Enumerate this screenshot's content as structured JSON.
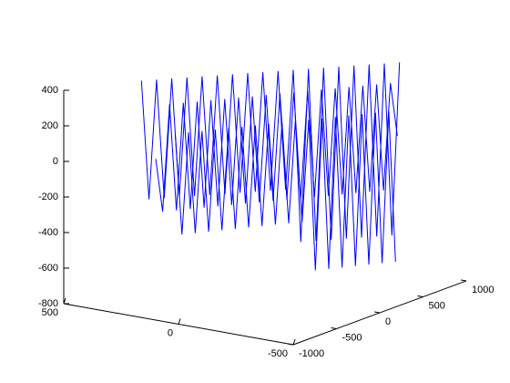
{
  "chart_data": {
    "type": "line3d",
    "color": "#0000ff",
    "xlim": [
      -500,
      500
    ],
    "xticks": [
      -500,
      0,
      500
    ],
    "ylim": [
      -1000,
      1000
    ],
    "yticks": [
      -1000,
      -500,
      0,
      500,
      1000
    ],
    "zlim": [
      -800,
      400
    ],
    "zticks": [
      -800,
      -600,
      -400,
      -200,
      0,
      200,
      400
    ],
    "series": [
      {
        "x": [
          250,
          235,
          220,
          205,
          190,
          175,
          160,
          145,
          130,
          115,
          100,
          85,
          70,
          55,
          40,
          25,
          10,
          -5,
          -20,
          -35,
          -50,
          -65,
          -80,
          -95,
          -110,
          -125,
          -140,
          -155,
          -170,
          -185,
          -200,
          -215,
          -230,
          -245,
          -260,
          -275
        ],
        "y": [
          -600,
          -560,
          -520,
          -480,
          -440,
          -400,
          -360,
          -320,
          -280,
          -240,
          -200,
          -160,
          -120,
          -80,
          -40,
          0,
          40,
          80,
          120,
          160,
          200,
          240,
          280,
          320,
          360,
          400,
          440,
          480,
          520,
          560,
          600,
          640,
          680,
          720,
          760,
          800
        ],
        "z": [
          0,
          -300,
          300,
          -300,
          300,
          -300,
          300,
          -300,
          300,
          -300,
          300,
          -300,
          300,
          -300,
          300,
          -300,
          300,
          -300,
          300,
          -300,
          300,
          -300,
          300,
          -300,
          300,
          -300,
          300,
          -300,
          300,
          -300,
          300,
          -300,
          300,
          -300,
          300,
          0
        ]
      },
      {
        "x": [
          320,
          302,
          284,
          266,
          248,
          230,
          212,
          194,
          176,
          158,
          140,
          122,
          104,
          86,
          68,
          50,
          32,
          14,
          -4,
          -22,
          -40,
          -58,
          -76,
          -94,
          -112,
          -130,
          -148,
          -166,
          -184,
          -202,
          -220,
          -238,
          -256,
          -274,
          -292
        ],
        "y": [
          -580,
          -540,
          -500,
          -460,
          -420,
          -380,
          -340,
          -300,
          -260,
          -220,
          -180,
          -140,
          -100,
          -60,
          -20,
          20,
          60,
          100,
          140,
          180,
          220,
          260,
          300,
          340,
          380,
          420,
          460,
          500,
          540,
          580,
          620,
          660,
          700,
          740,
          780
        ],
        "z": [
          420,
          -250,
          420,
          -250,
          420,
          -250,
          420,
          -250,
          420,
          -250,
          420,
          -250,
          420,
          -250,
          420,
          -250,
          420,
          -250,
          420,
          -250,
          420,
          -550,
          420,
          -550,
          420,
          -550,
          420,
          -550,
          420,
          -550,
          420,
          -550,
          420,
          -550,
          420
        ]
      },
      {
        "x": [
          180,
          166,
          152,
          138,
          124,
          110,
          96,
          82,
          68,
          54,
          40,
          26,
          12,
          -2,
          -16,
          -30,
          -44,
          -58,
          -72,
          -86,
          -100,
          -114,
          -128,
          -142,
          -156,
          -170,
          -184,
          -198,
          -212,
          -226,
          -240,
          -254,
          -268,
          -282
        ],
        "y": [
          -560,
          -520,
          -480,
          -440,
          -400,
          -360,
          -320,
          -280,
          -240,
          -200,
          -160,
          -120,
          -80,
          -40,
          0,
          40,
          80,
          120,
          160,
          200,
          240,
          280,
          320,
          360,
          400,
          440,
          480,
          520,
          560,
          600,
          640,
          680,
          720,
          760
        ],
        "z": [
          150,
          -420,
          150,
          -420,
          150,
          -420,
          150,
          -420,
          150,
          -420,
          150,
          -420,
          150,
          -420,
          150,
          -420,
          150,
          -420,
          150,
          -420,
          150,
          -700,
          150,
          -700,
          150,
          -700,
          150,
          -700,
          150,
          -700,
          150,
          -700,
          150,
          -700
        ]
      }
    ]
  }
}
